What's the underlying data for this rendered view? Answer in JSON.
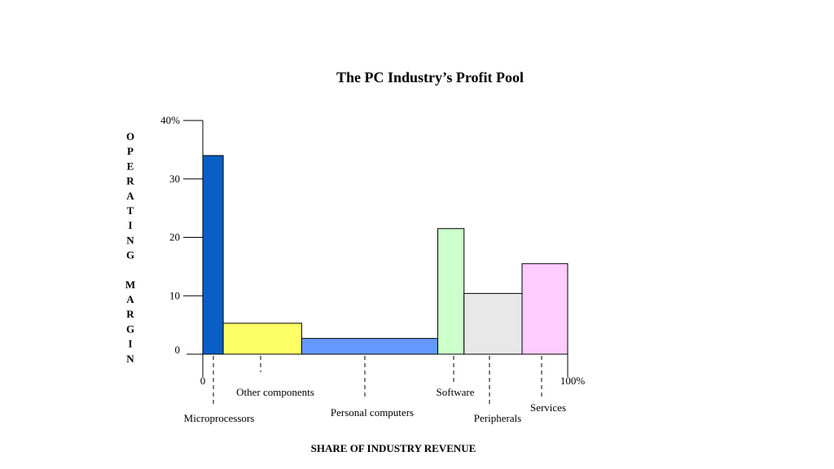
{
  "chart_data": {
    "type": "bar",
    "title": "The PC Industry’s Profit Pool",
    "xlabel": "SHARE OF INDUSTRY REVENUE",
    "ylabel": "OPERATING MARGIN",
    "ylim": [
      0,
      40
    ],
    "xlim": [
      0,
      100
    ],
    "y_ticks": [
      "0",
      "10",
      "20",
      "30",
      "40%"
    ],
    "x_ticks": [
      "0",
      "100%"
    ],
    "segments": [
      {
        "label": "Microprocessors",
        "share_start": 0,
        "share_end": 5.6,
        "margin": 34,
        "color": "#0a5fc6"
      },
      {
        "label": "Other components",
        "share_start": 5.6,
        "share_end": 27.1,
        "margin": 5.3,
        "color": "#ffff66"
      },
      {
        "label": "Personal computers",
        "share_start": 27.1,
        "share_end": 64.4,
        "margin": 2.7,
        "color": "#6699ff"
      },
      {
        "label": "Software",
        "share_start": 64.4,
        "share_end": 71.6,
        "margin": 21.5,
        "color": "#ccffcc"
      },
      {
        "label": "Peripherals",
        "share_start": 71.6,
        "share_end": 87.5,
        "margin": 10.4,
        "color": "#e8e8e8"
      },
      {
        "label": "Services",
        "share_start": 87.5,
        "share_end": 100,
        "margin": 15.5,
        "color": "#ffccff"
      }
    ]
  }
}
